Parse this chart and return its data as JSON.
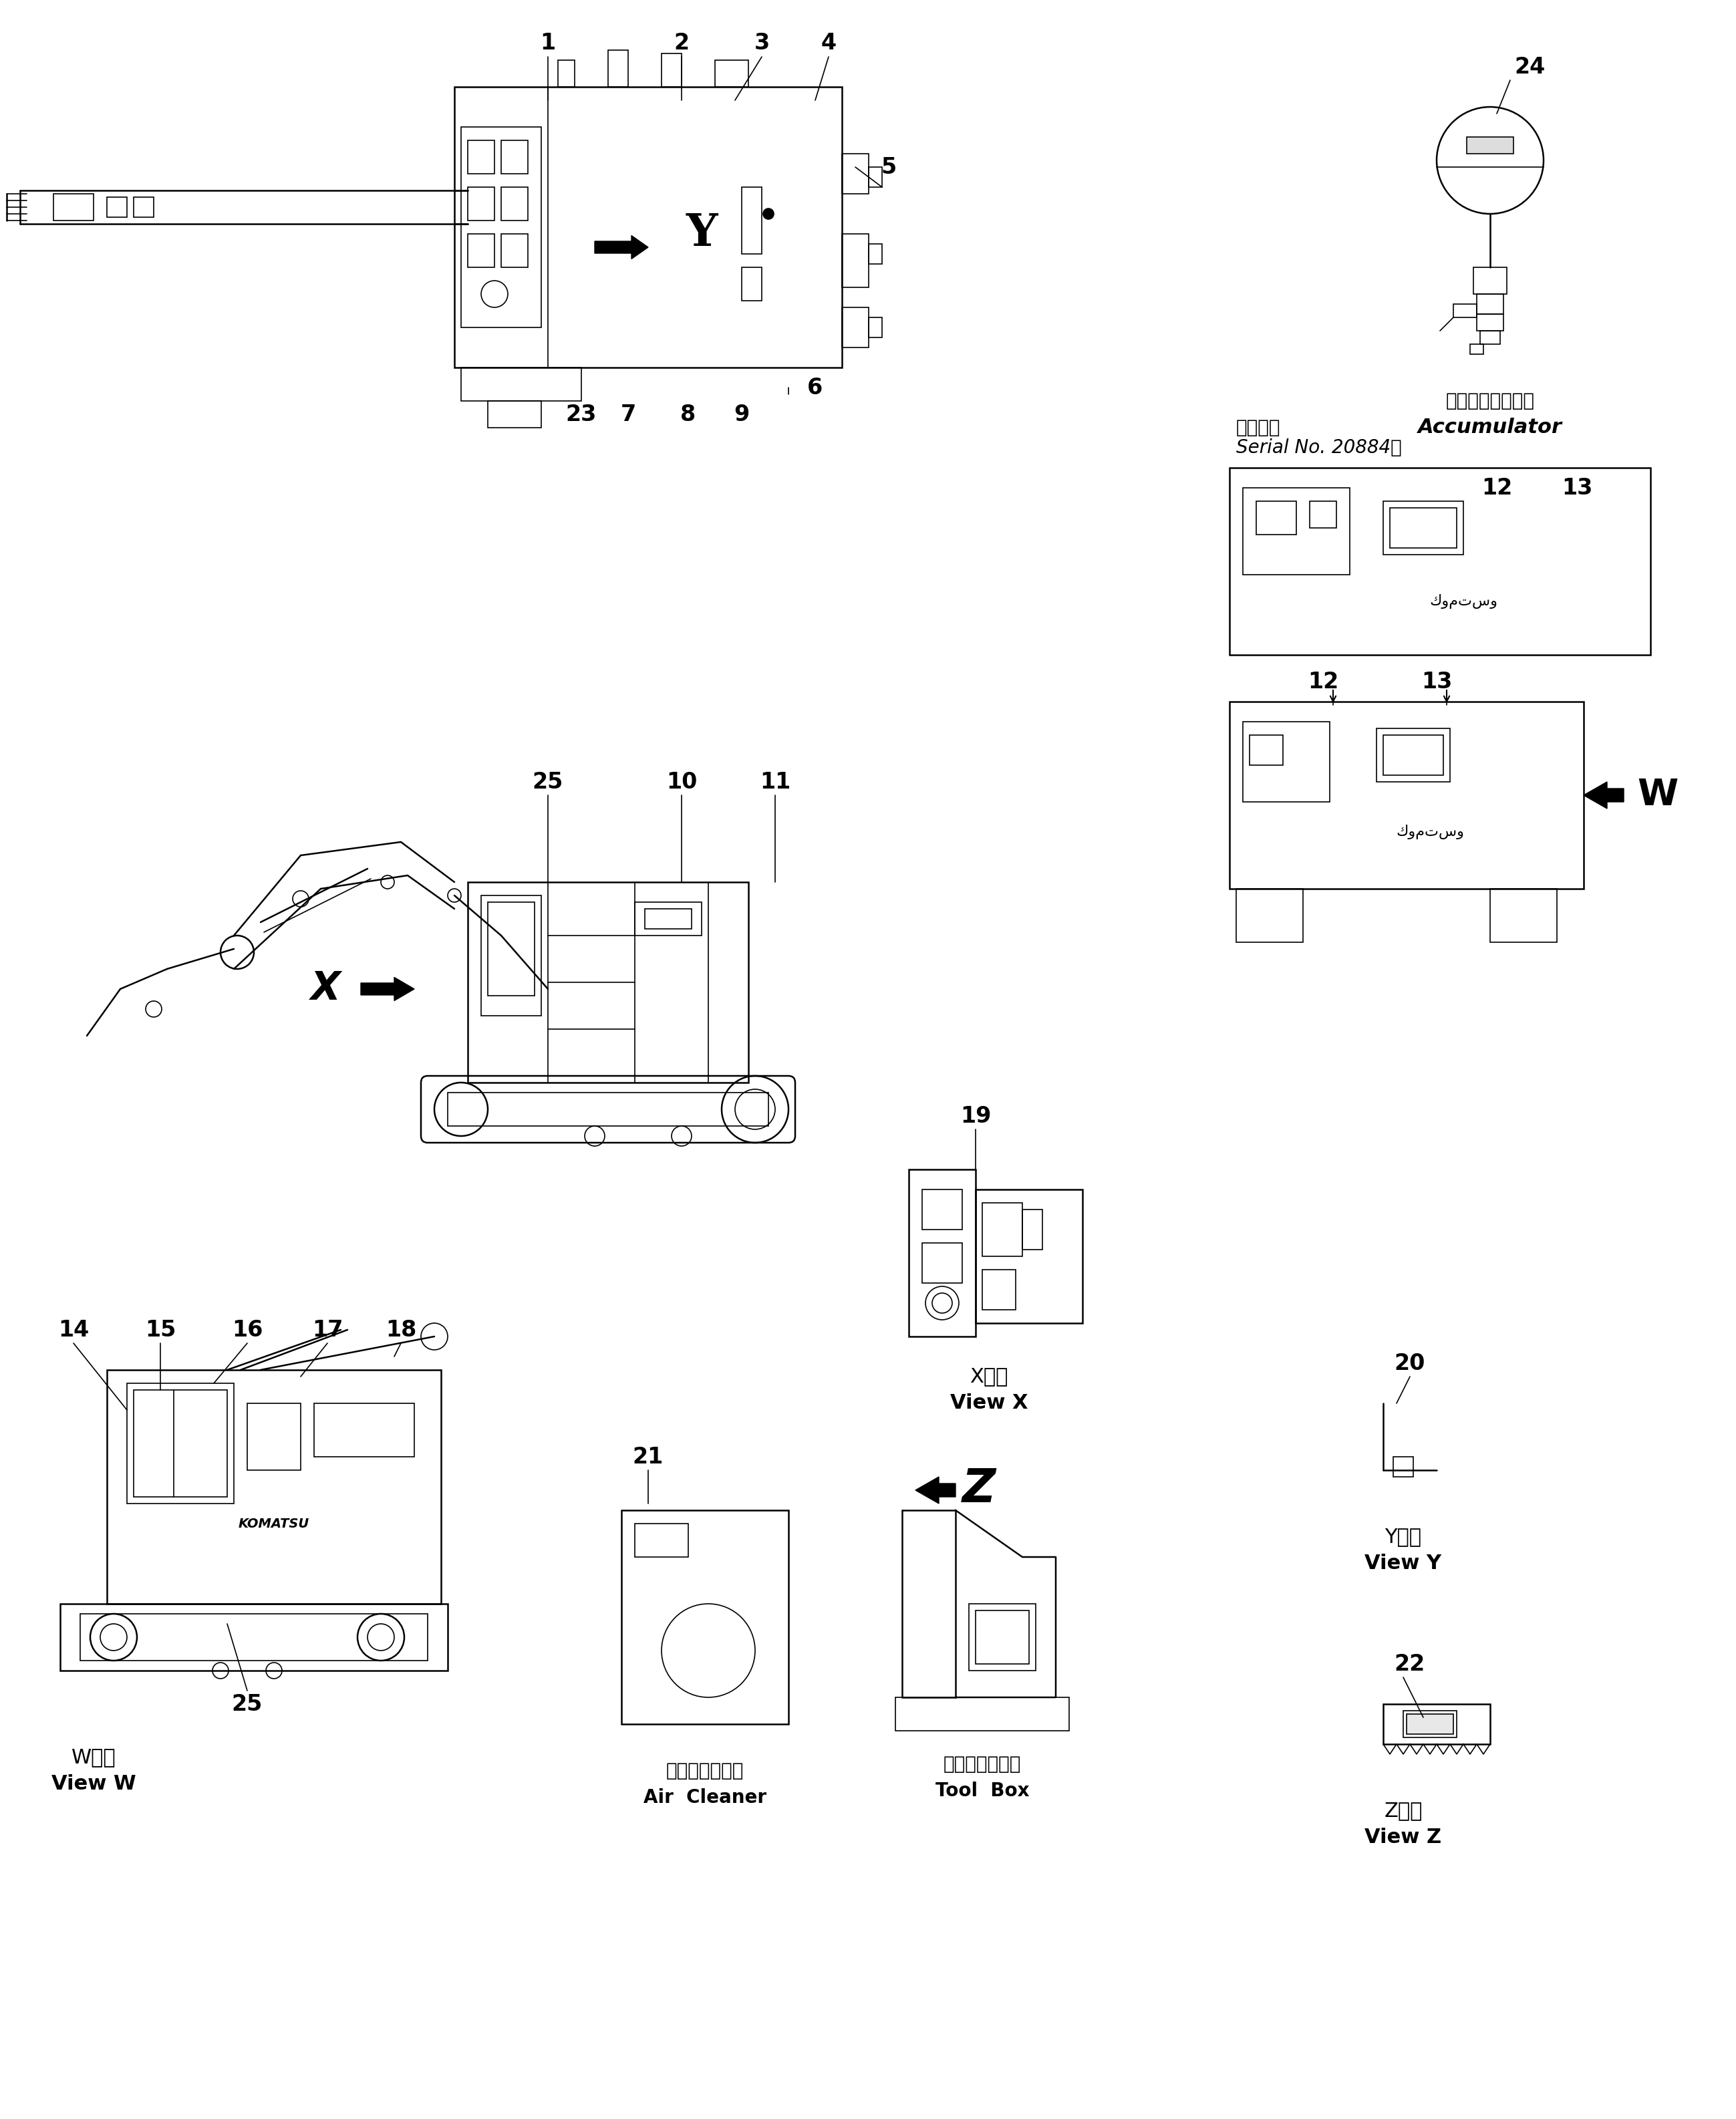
{
  "bg_color": "#ffffff",
  "line_color": "#000000",
  "fig_width": 25.98,
  "fig_height": 31.71,
  "labels": {
    "accumulator_jp": "アキュームレータ",
    "accumulator_en": "Accumulator",
    "serial_jp": "適用号機",
    "serial_en": "Serial No. 20884～",
    "view_w_jp": "W　視",
    "view_w_en": "View W",
    "view_x_jp": "X　視",
    "view_x_en": "View X",
    "view_y_jp": "Y　視",
    "view_y_en": "View Y",
    "view_z_jp": "Z　視",
    "view_z_en": "View Z",
    "air_cleaner_jp": "エアークリーナ",
    "air_cleaner_en": "Air  Cleaner",
    "tool_box_jp": "ツールボックス",
    "tool_box_en": "Tool  Box"
  }
}
